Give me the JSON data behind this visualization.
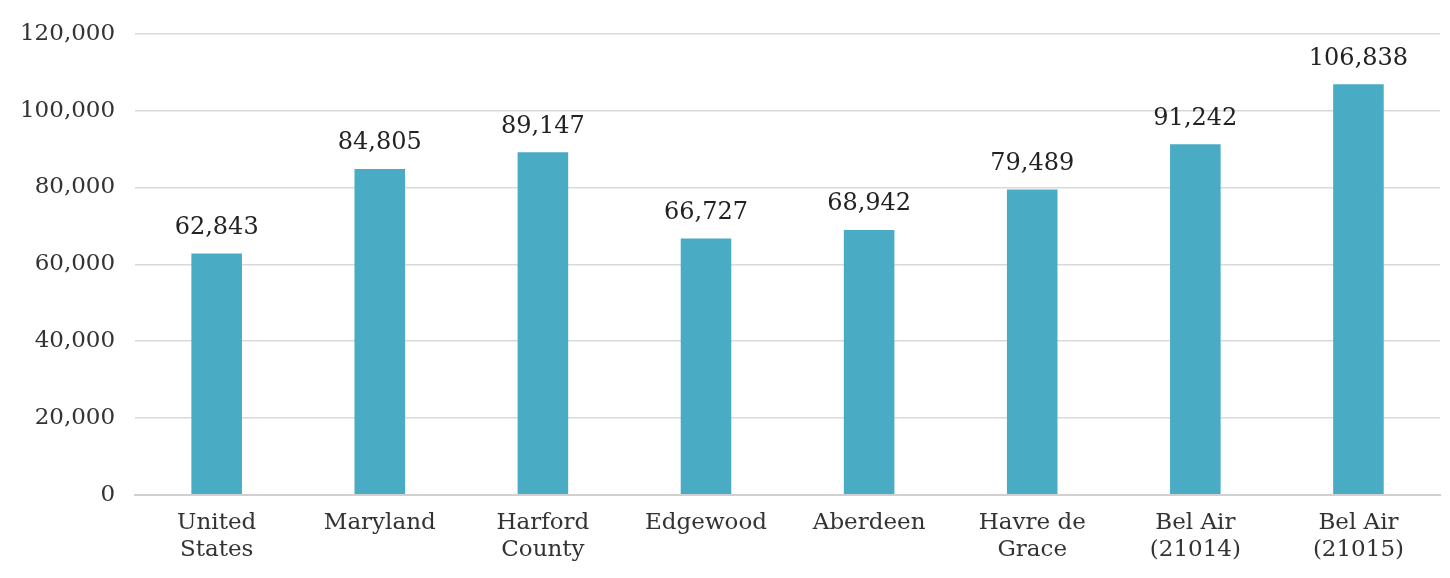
{
  "chart_data": {
    "type": "bar",
    "categories": [
      "United\nStates",
      "Maryland",
      "Harford\nCounty",
      "Edgewood",
      "Aberdeen",
      "Havre de\nGrace",
      "Bel Air\n(21014)",
      "Bel Air\n(21015)"
    ],
    "values": [
      62843,
      84805,
      89147,
      66727,
      68942,
      79489,
      91242,
      106838
    ],
    "color": "#4aabc5",
    "ylim": [
      0,
      120000
    ],
    "yticks": [
      {
        "value": 0,
        "label": "0"
      },
      {
        "value": 20000,
        "label": "20,000"
      },
      {
        "value": 40000,
        "label": "40,000"
      },
      {
        "value": 60000,
        "label": "60,000"
      },
      {
        "value": 80000,
        "label": "80,000"
      },
      {
        "value": 100000,
        "label": "100,000"
      },
      {
        "value": 120000,
        "label": "120,000"
      }
    ],
    "value_labels": [
      "62,843",
      "84,805",
      "89,147",
      "66,727",
      "68,942",
      "79,489",
      "91,242",
      "106,838"
    ],
    "grid": "y",
    "legend": false
  }
}
